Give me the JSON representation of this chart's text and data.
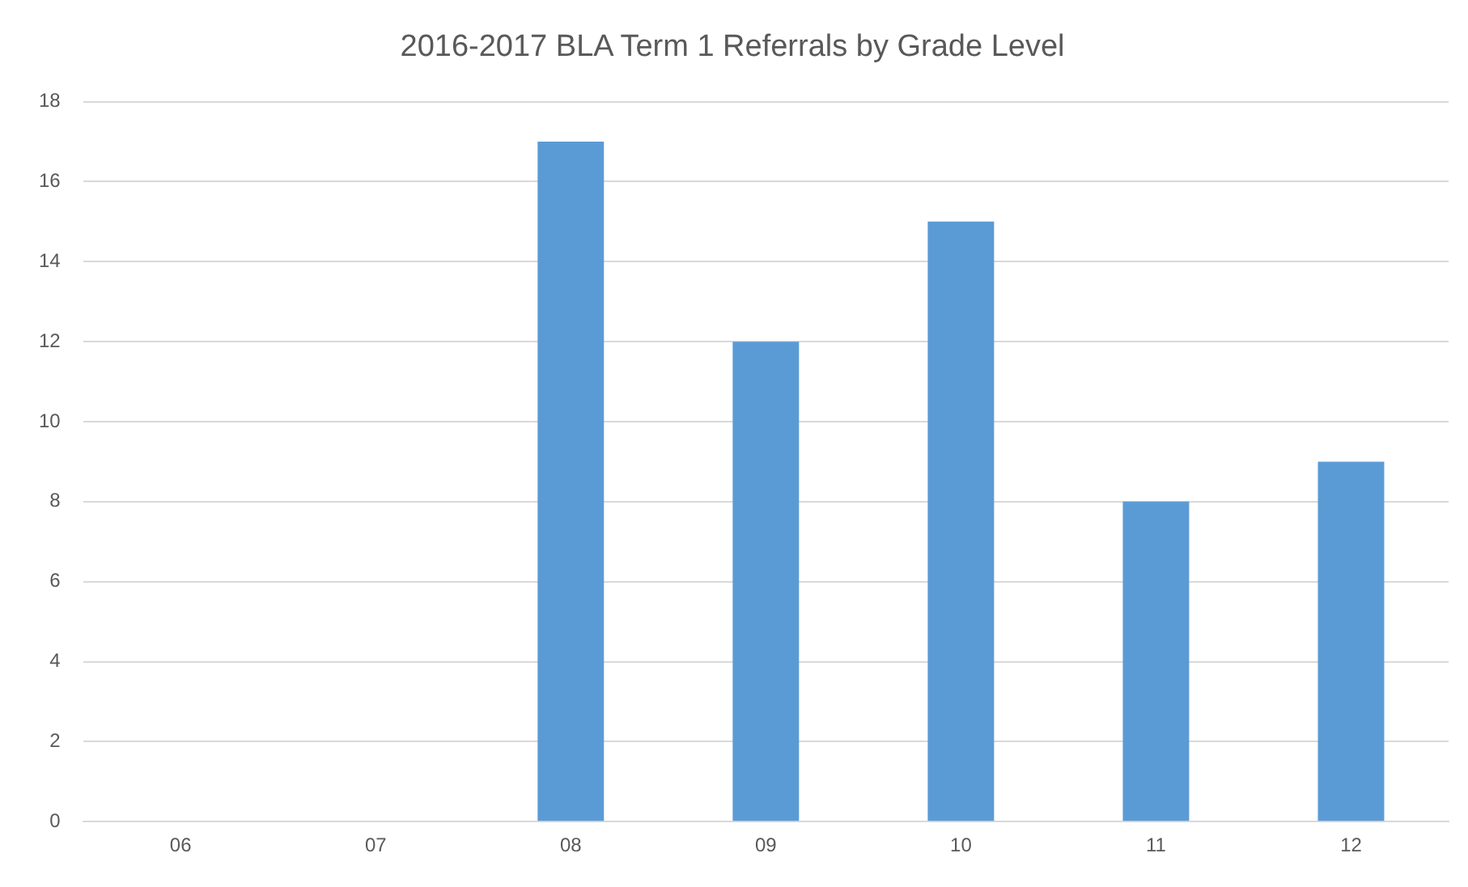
{
  "chart_data": {
    "type": "bar",
    "title": "2016-2017 BLA Term 1 Referrals by Grade Level",
    "categories": [
      "06",
      "07",
      "08",
      "09",
      "10",
      "11",
      "12"
    ],
    "values": [
      0,
      0,
      17,
      12,
      15,
      8,
      9
    ],
    "color": "#5b9bd5",
    "ylim": [
      0,
      18
    ],
    "yticks": [
      0,
      2,
      4,
      6,
      8,
      10,
      12,
      14,
      16,
      18
    ],
    "grid": "y",
    "legend": false
  }
}
